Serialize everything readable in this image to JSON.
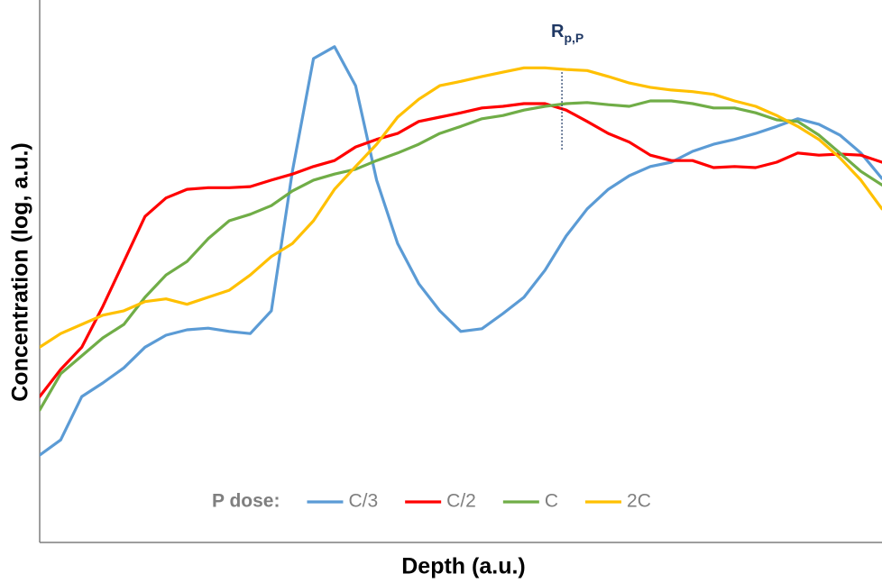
{
  "chart_data": {
    "type": "line",
    "xlabel": "Depth (a.u.)",
    "ylabel": "Concentration (log, a.u.)",
    "xlim": [
      0,
      100
    ],
    "ylim": [
      0,
      100
    ],
    "x": [
      0,
      2.5,
      5,
      7.5,
      10,
      12.5,
      15,
      17.5,
      20,
      22.5,
      25,
      27.5,
      30,
      32.5,
      35,
      37.5,
      40,
      42.5,
      45,
      47.5,
      50,
      52.5,
      55,
      57.5,
      60,
      62.5,
      65,
      67.5,
      70,
      72.5,
      75,
      77.5,
      80,
      82.5,
      85,
      87.5,
      90,
      92.5,
      95,
      97.5,
      100
    ],
    "legend_title": "P dose:",
    "series": [
      {
        "name": "C/3",
        "color": "#5b9bd5",
        "values": [
          16.1,
          18.9,
          26.9,
          29.4,
          32.2,
          36.0,
          38.2,
          39.2,
          39.5,
          38.9,
          38.5,
          42.7,
          68.4,
          89.2,
          91.4,
          84.2,
          66.8,
          55.1,
          47.7,
          42.7,
          38.9,
          39.4,
          42.2,
          45.2,
          50.2,
          56.5,
          61.5,
          65.1,
          67.6,
          69.3,
          70.1,
          72.1,
          73.4,
          74.3,
          75.4,
          76.7,
          78.1,
          77.1,
          75.1,
          71.8,
          67.1
        ]
      },
      {
        "name": "C/2",
        "color": "#ff0000",
        "values": [
          26.9,
          31.9,
          36.0,
          43.5,
          51.8,
          60.1,
          63.5,
          65.1,
          65.4,
          65.4,
          65.6,
          66.8,
          67.9,
          69.3,
          70.4,
          72.9,
          74.3,
          75.4,
          77.6,
          78.4,
          79.2,
          80.1,
          80.4,
          80.9,
          80.9,
          79.7,
          77.6,
          75.4,
          73.8,
          71.4,
          70.4,
          70.4,
          69.1,
          69.3,
          69.1,
          70.1,
          71.8,
          71.4,
          71.6,
          71.4,
          70.1
        ]
      },
      {
        "name": "C",
        "color": "#70ad47",
        "values": [
          24.4,
          31.1,
          34.4,
          37.7,
          40.2,
          45.2,
          49.3,
          51.8,
          56.0,
          59.3,
          60.5,
          62.1,
          64.8,
          66.8,
          67.9,
          68.8,
          70.4,
          71.8,
          73.4,
          75.4,
          76.7,
          78.1,
          78.7,
          79.7,
          80.4,
          80.9,
          81.1,
          80.7,
          80.4,
          81.4,
          81.4,
          80.9,
          80.1,
          80.1,
          79.2,
          77.9,
          77.6,
          75.1,
          71.8,
          68.4,
          65.9
        ]
      },
      {
        "name": "2C",
        "color": "#ffc000",
        "values": [
          36.0,
          38.5,
          40.2,
          41.9,
          42.7,
          44.4,
          44.9,
          43.9,
          45.2,
          46.5,
          49.3,
          52.7,
          55.1,
          59.3,
          65.1,
          69.3,
          73.4,
          78.4,
          81.7,
          84.2,
          85.0,
          85.9,
          86.7,
          87.5,
          87.5,
          87.2,
          87.0,
          85.9,
          84.7,
          83.9,
          83.4,
          83.1,
          82.6,
          81.4,
          80.4,
          78.7,
          76.7,
          74.3,
          70.9,
          66.8,
          61.5
        ]
      }
    ],
    "annotation": {
      "text": "R",
      "subscript": "p,P",
      "x": 62
    }
  }
}
